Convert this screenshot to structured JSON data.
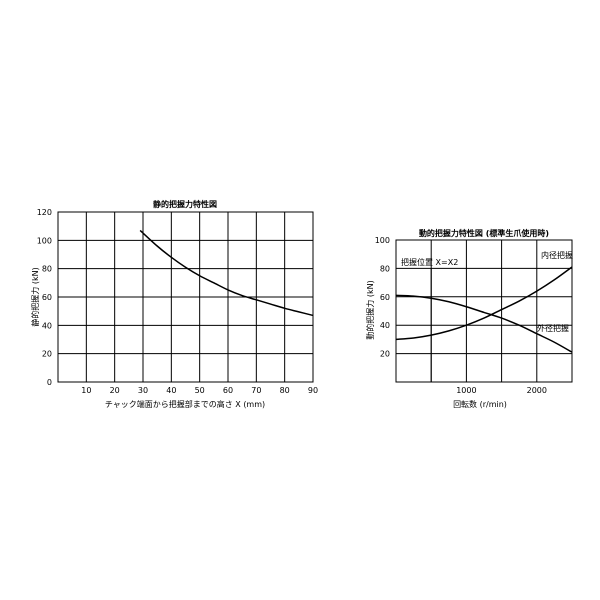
{
  "chart_data": [
    {
      "type": "line",
      "title": "静的把握力特性図",
      "xlabel": "チャック端面から把握部までの高さ X (mm)",
      "ylabel": "静的把握力 (kN)",
      "xlim": [
        0,
        90
      ],
      "ylim": [
        0,
        120
      ],
      "xticks": [
        "10",
        "20",
        "30",
        "40",
        "50",
        "60",
        "70",
        "80",
        "90"
      ],
      "yticks": [
        "0",
        "20",
        "40",
        "60",
        "80",
        "100",
        "120"
      ],
      "grid": true,
      "series": [
        {
          "x": [
            29,
            35,
            40,
            45,
            50,
            55,
            60,
            65,
            70,
            75,
            80,
            85,
            90
          ],
          "y": [
            107,
            96,
            88,
            81,
            75,
            70,
            65,
            61,
            58,
            55,
            52,
            49.5,
            47
          ]
        }
      ]
    },
    {
      "type": "line",
      "title": "動的把握力特性図 (標準生爪使用時)",
      "xlabel": "回転数 (r/min)",
      "ylabel": "動的把握力 (kN)",
      "xlim": [
        0,
        2500
      ],
      "ylim": [
        0,
        100
      ],
      "xticks": [
        "1000",
        "2000"
      ],
      "yticks": [
        "20",
        "40",
        "60",
        "80",
        "100"
      ],
      "grid": true,
      "annotations": [
        "把握位置  X=X2",
        "内径把握",
        "外径把握"
      ],
      "series": [
        {
          "name": "内径把握",
          "x": [
            0,
            250,
            500,
            750,
            1000,
            1250,
            1500,
            1750,
            2000,
            2250,
            2500
          ],
          "y": [
            30,
            31,
            33,
            36,
            40,
            45,
            51,
            57,
            64,
            72,
            81
          ]
        },
        {
          "name": "外径把握",
          "x": [
            0,
            250,
            500,
            750,
            1000,
            1250,
            1500,
            1750,
            2000,
            2250,
            2500
          ],
          "y": [
            61,
            60.5,
            59,
            56.5,
            53,
            49,
            45,
            40,
            34,
            28,
            21
          ]
        }
      ]
    }
  ]
}
